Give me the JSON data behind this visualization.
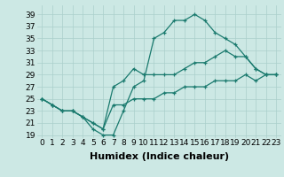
{
  "xlabel": "Humidex (Indice chaleur)",
  "bg_color": "#cce8e4",
  "grid_color": "#aacfcb",
  "line_color": "#1a7a6e",
  "xlim": [
    -0.5,
    23.5
  ],
  "ylim": [
    18.5,
    40.5
  ],
  "xticks": [
    0,
    1,
    2,
    3,
    4,
    5,
    6,
    7,
    8,
    9,
    10,
    11,
    12,
    13,
    14,
    15,
    16,
    17,
    18,
    19,
    20,
    21,
    22,
    23
  ],
  "yticks": [
    19,
    21,
    23,
    25,
    27,
    29,
    31,
    33,
    35,
    37,
    39
  ],
  "curve1_x": [
    0,
    1,
    2,
    3,
    4,
    5,
    6,
    7,
    8,
    9,
    10,
    11,
    12,
    13,
    14,
    15,
    16,
    17,
    18,
    19,
    20,
    21,
    22,
    23
  ],
  "curve1_y": [
    25,
    24,
    23,
    23,
    22,
    20,
    19,
    19,
    23,
    27,
    28,
    35,
    36,
    38,
    38,
    39,
    38,
    36,
    35,
    34,
    32,
    30,
    29,
    29
  ],
  "curve2_x": [
    0,
    1,
    2,
    3,
    4,
    5,
    6,
    7,
    8,
    9,
    10,
    11,
    12,
    13,
    14,
    15,
    16,
    17,
    18,
    19,
    20,
    21,
    22,
    23
  ],
  "curve2_y": [
    25,
    24,
    23,
    23,
    22,
    21,
    20,
    27,
    28,
    30,
    29,
    29,
    29,
    29,
    30,
    31,
    31,
    32,
    33,
    32,
    32,
    30,
    29,
    29
  ],
  "curve3_x": [
    0,
    1,
    2,
    3,
    4,
    5,
    6,
    7,
    8,
    9,
    10,
    11,
    12,
    13,
    14,
    15,
    16,
    17,
    18,
    19,
    20,
    21,
    22,
    23
  ],
  "curve3_y": [
    25,
    24,
    23,
    23,
    22,
    21,
    20,
    24,
    24,
    25,
    25,
    25,
    26,
    26,
    27,
    27,
    27,
    28,
    28,
    28,
    29,
    28,
    29,
    29
  ],
  "xlabel_fontsize": 8,
  "tick_fontsize": 6.5
}
